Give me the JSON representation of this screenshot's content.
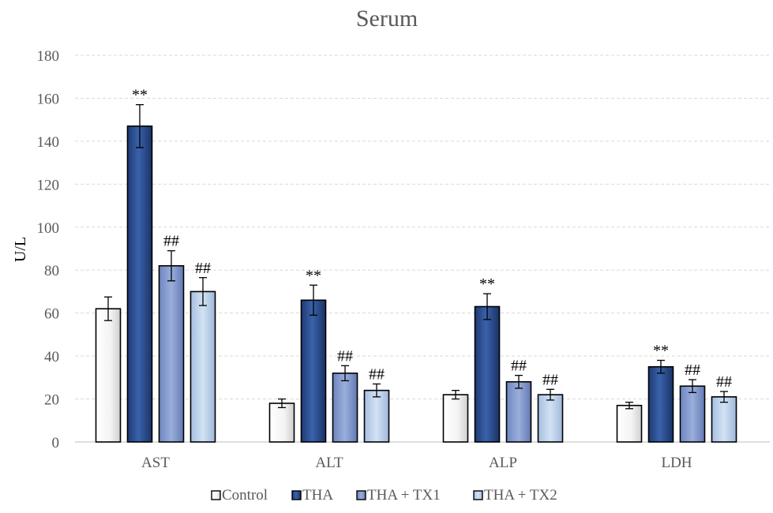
{
  "chart_data": {
    "type": "bar",
    "title": "Serum",
    "xlabel": "",
    "ylabel": "U/L",
    "categories": [
      "AST",
      "ALT",
      "ALP",
      "LDH"
    ],
    "ylim": [
      0,
      180
    ],
    "yticks": [
      0,
      20,
      40,
      60,
      80,
      100,
      120,
      140,
      160,
      180
    ],
    "grid": true,
    "legend_position": "bottom",
    "series": [
      {
        "name": "Control",
        "values": [
          62,
          18,
          22,
          17
        ],
        "errors": [
          5.5,
          2,
          2,
          1.5
        ],
        "annotations": [
          "",
          "",
          "",
          ""
        ],
        "color": "#f0f0f0"
      },
      {
        "name": "THA",
        "values": [
          147,
          66,
          63,
          35
        ],
        "errors": [
          10,
          7,
          6,
          3
        ],
        "annotations": [
          "**",
          "**",
          "**",
          "**"
        ],
        "color": "#2d4f8f"
      },
      {
        "name": "THA + TX1",
        "values": [
          82,
          32,
          28,
          26
        ],
        "errors": [
          7,
          3.5,
          3,
          3
        ],
        "annotations": [
          "##",
          "##",
          "##",
          "##"
        ],
        "color": "#7f96cc"
      },
      {
        "name": "THA + TX2",
        "values": [
          70,
          24,
          22,
          21
        ],
        "errors": [
          6.5,
          3,
          2.5,
          2.5
        ],
        "annotations": [
          "##",
          "##",
          "##",
          "##"
        ],
        "color": "#b8cfea"
      }
    ]
  }
}
